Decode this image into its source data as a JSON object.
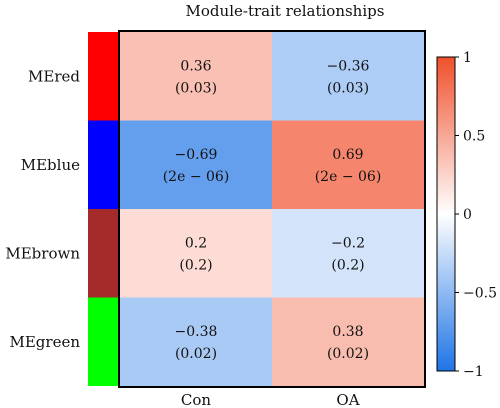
{
  "chart_data": {
    "type": "heatmap",
    "title": "Module-trait relationships",
    "rows": [
      {
        "label": "MEred",
        "module_color": "#ff0000"
      },
      {
        "label": "MEblue",
        "module_color": "#0000ff"
      },
      {
        "label": "MEbrown",
        "module_color": "#a52a2a"
      },
      {
        "label": "MEgreen",
        "module_color": "#00ff00"
      }
    ],
    "columns": [
      "Con",
      "OA"
    ],
    "values": [
      [
        0.36,
        -0.36
      ],
      [
        -0.69,
        0.69
      ],
      [
        0.2,
        -0.2
      ],
      [
        -0.38,
        0.38
      ]
    ],
    "cell_text": [
      [
        [
          "0.36",
          "(0.03)"
        ],
        [
          "−0.36",
          "(0.03)"
        ]
      ],
      [
        [
          "−0.69",
          "(2e − 06)"
        ],
        [
          "0.69",
          "(2e − 06)"
        ]
      ],
      [
        [
          "0.2",
          "(0.2)"
        ],
        [
          "−0.2",
          "(0.2)"
        ]
      ],
      [
        [
          "−0.38",
          "(0.02)"
        ],
        [
          "0.38",
          "(0.02)"
        ]
      ]
    ],
    "color_scale": {
      "min": -1,
      "max": 1,
      "low_color": "#1e74e6",
      "mid_color": "#ffffff",
      "high_color": "#f0502c",
      "ticks": [
        {
          "value": 1,
          "label": "1"
        },
        {
          "value": 0.5,
          "label": "0.5"
        },
        {
          "value": 0,
          "label": "0"
        },
        {
          "value": -0.5,
          "label": "−0.5"
        },
        {
          "value": -1,
          "label": "−1"
        }
      ]
    }
  }
}
